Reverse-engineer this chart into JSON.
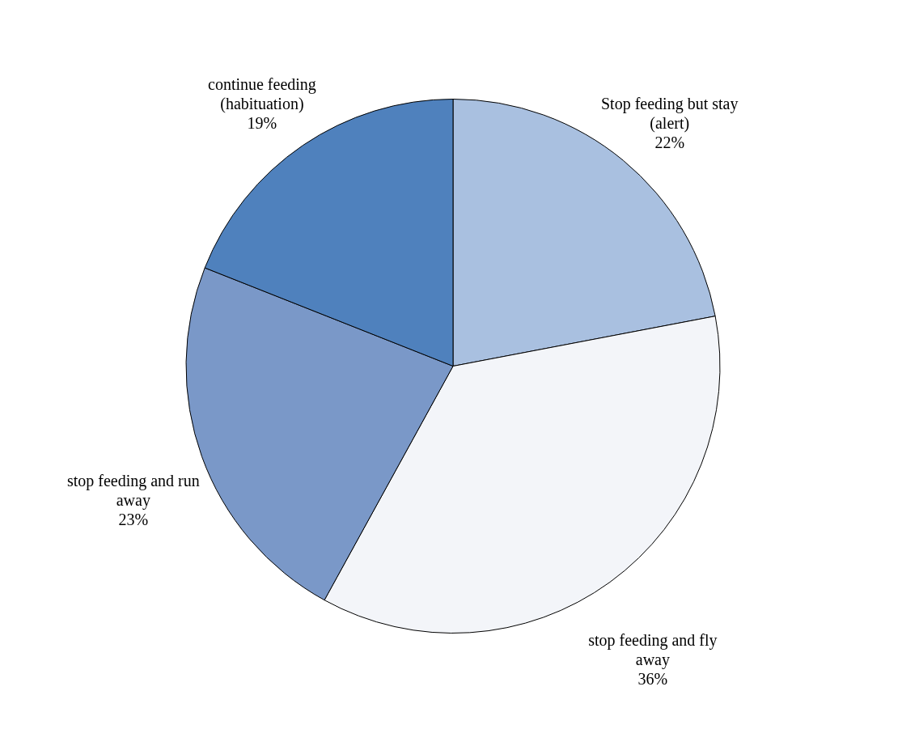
{
  "chart_data": {
    "type": "pie",
    "categories": [
      "Stop feeding but stay (alert)",
      "stop feeding and fly away",
      "stop feeding and run away",
      "continue feeding (habituation)"
    ],
    "values": [
      22,
      36,
      23,
      19
    ],
    "value_labels": [
      "22%",
      "36%",
      "23%",
      "19%"
    ],
    "colors": [
      "#a9c0e0",
      "#f3f5f9",
      "#7a98c8",
      "#4f81bd"
    ],
    "legend": false
  }
}
